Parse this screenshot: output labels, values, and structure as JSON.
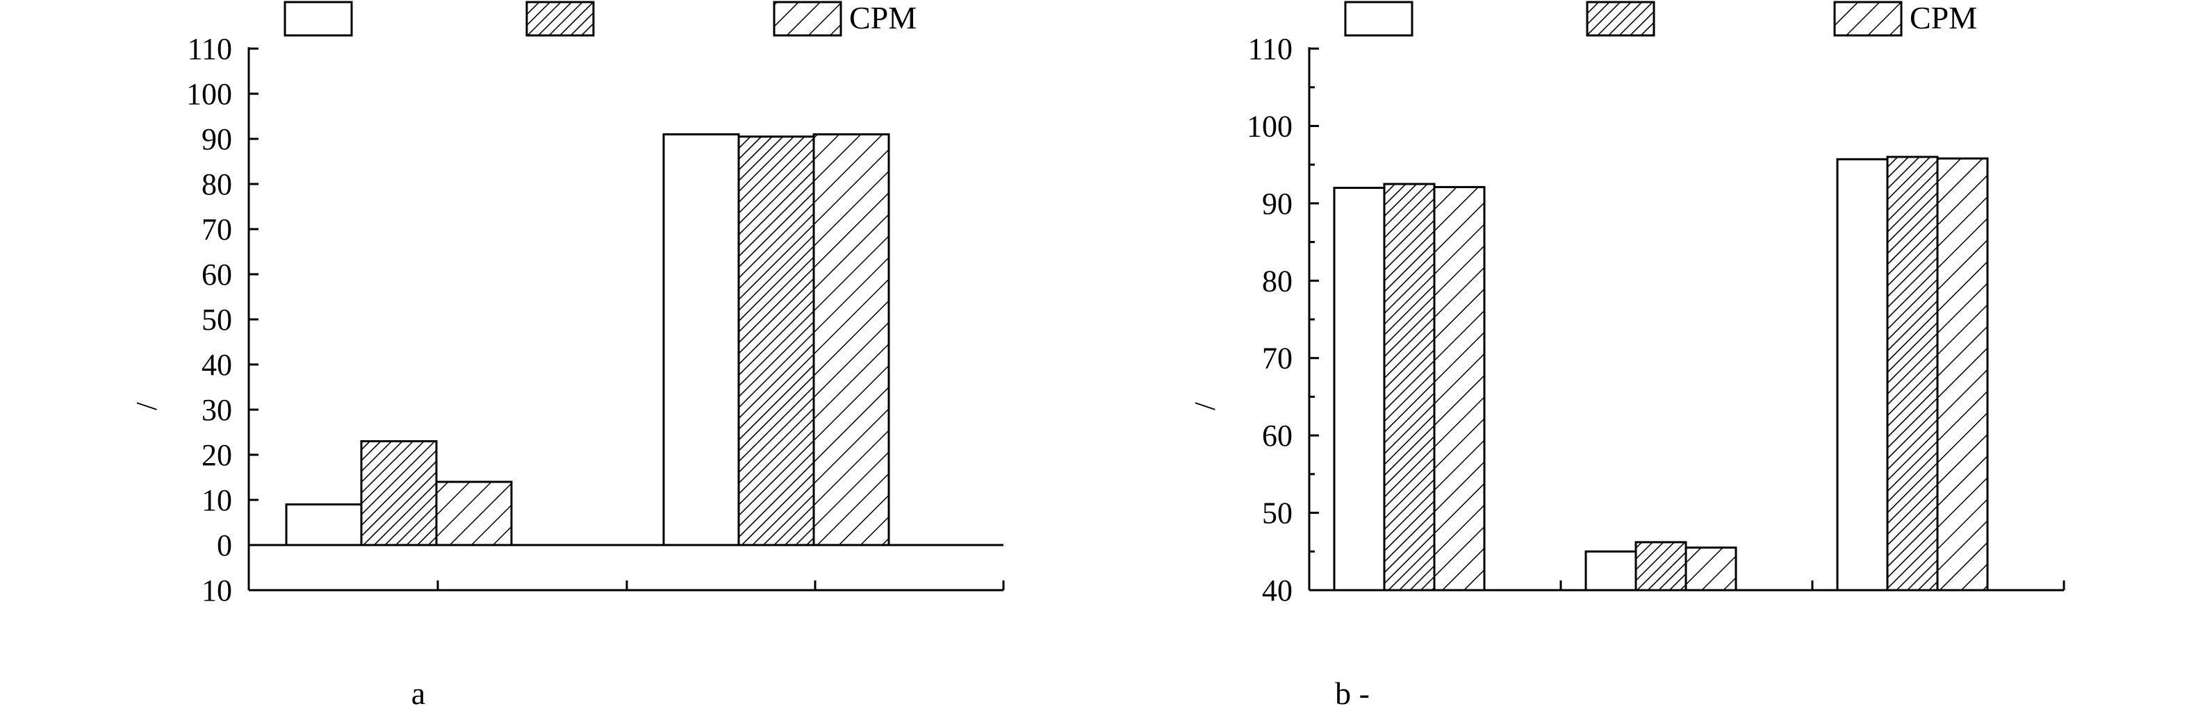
{
  "chart_data": [
    {
      "type": "bar",
      "panel_label": "a",
      "ylabel": "/",
      "ylim": [
        -10,
        110
      ],
      "ytick_labels": [
        "10",
        "0",
        "10",
        "20",
        "30",
        "40",
        "50",
        "60",
        "70",
        "80",
        "90",
        "100",
        "110"
      ],
      "ytick_values": [
        -10,
        0,
        10,
        20,
        30,
        40,
        50,
        60,
        70,
        80,
        90,
        100,
        110
      ],
      "categories": [
        "",
        ""
      ],
      "legend": [
        "",
        "",
        "CPM"
      ],
      "series": [
        {
          "pattern": "none",
          "values": [
            9,
            91
          ]
        },
        {
          "pattern": "dense-hatch",
          "values": [
            23,
            90.5
          ]
        },
        {
          "pattern": "hatch",
          "values": [
            14,
            91
          ]
        }
      ]
    },
    {
      "type": "bar",
      "panel_label": "b -",
      "ylabel": "/",
      "ylim": [
        40,
        110
      ],
      "ytick_labels": [
        "40",
        "50",
        "60",
        "70",
        "80",
        "90",
        "100",
        "110"
      ],
      "ytick_values": [
        40,
        50,
        60,
        70,
        80,
        90,
        100,
        110
      ],
      "categories": [
        "",
        "",
        ""
      ],
      "legend": [
        "",
        "",
        "CPM"
      ],
      "series": [
        {
          "pattern": "none",
          "values": [
            92,
            45,
            95.7
          ]
        },
        {
          "pattern": "dense-hatch",
          "values": [
            92.5,
            46.2,
            96
          ]
        },
        {
          "pattern": "hatch",
          "values": [
            92.1,
            45.5,
            95.8
          ]
        }
      ]
    }
  ]
}
